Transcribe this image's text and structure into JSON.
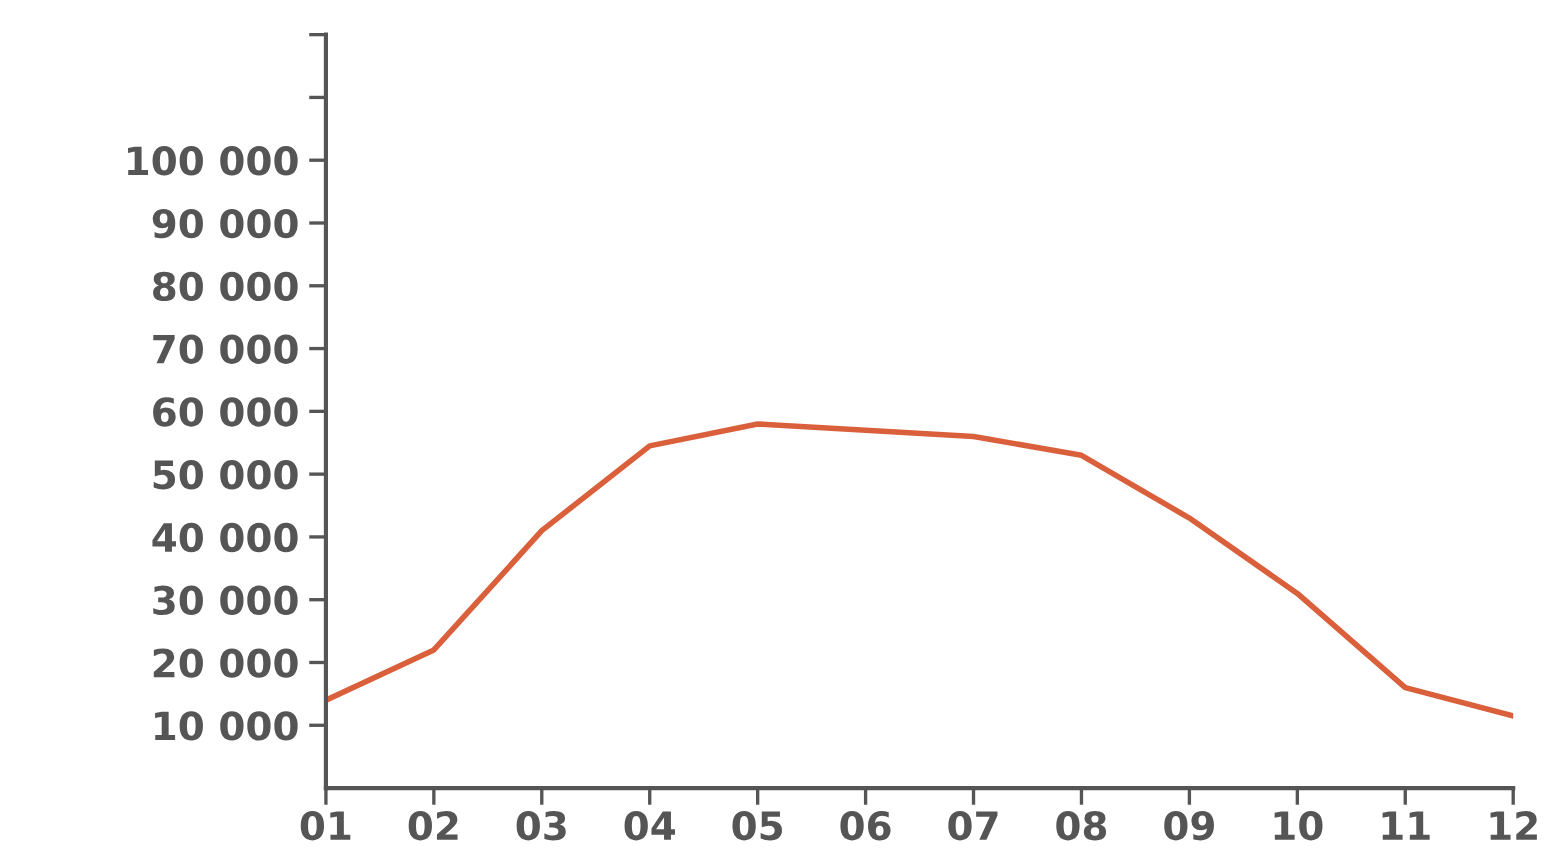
{
  "chart_data": {
    "type": "line",
    "categories": [
      "01",
      "02",
      "03",
      "04",
      "05",
      "06",
      "07",
      "08",
      "09",
      "10",
      "11",
      "12"
    ],
    "series": [
      {
        "color": "#d9603b",
        "values": [
          14000,
          22000,
          41000,
          54500,
          58000,
          57000,
          56000,
          53000,
          43000,
          31000,
          16000,
          11500
        ]
      }
    ],
    "ylim": [
      0,
      120000
    ],
    "yticks": [
      {
        "value": 10000,
        "label": "10 000"
      },
      {
        "value": 20000,
        "label": "20 000"
      },
      {
        "value": 30000,
        "label": "30 000"
      },
      {
        "value": 40000,
        "label": "40 000"
      },
      {
        "value": 50000,
        "label": "50 000"
      },
      {
        "value": 60000,
        "label": "60 000"
      },
      {
        "value": 70000,
        "label": "70 000"
      },
      {
        "value": 80000,
        "label": "80 000"
      },
      {
        "value": 90000,
        "label": "90 000"
      },
      {
        "value": 100000,
        "label": "100 000"
      },
      {
        "value": 110000,
        "label": null
      },
      {
        "value": 120000,
        "label": null
      }
    ],
    "grid": false,
    "legend": false,
    "marker": "none",
    "line_style": "solid"
  }
}
